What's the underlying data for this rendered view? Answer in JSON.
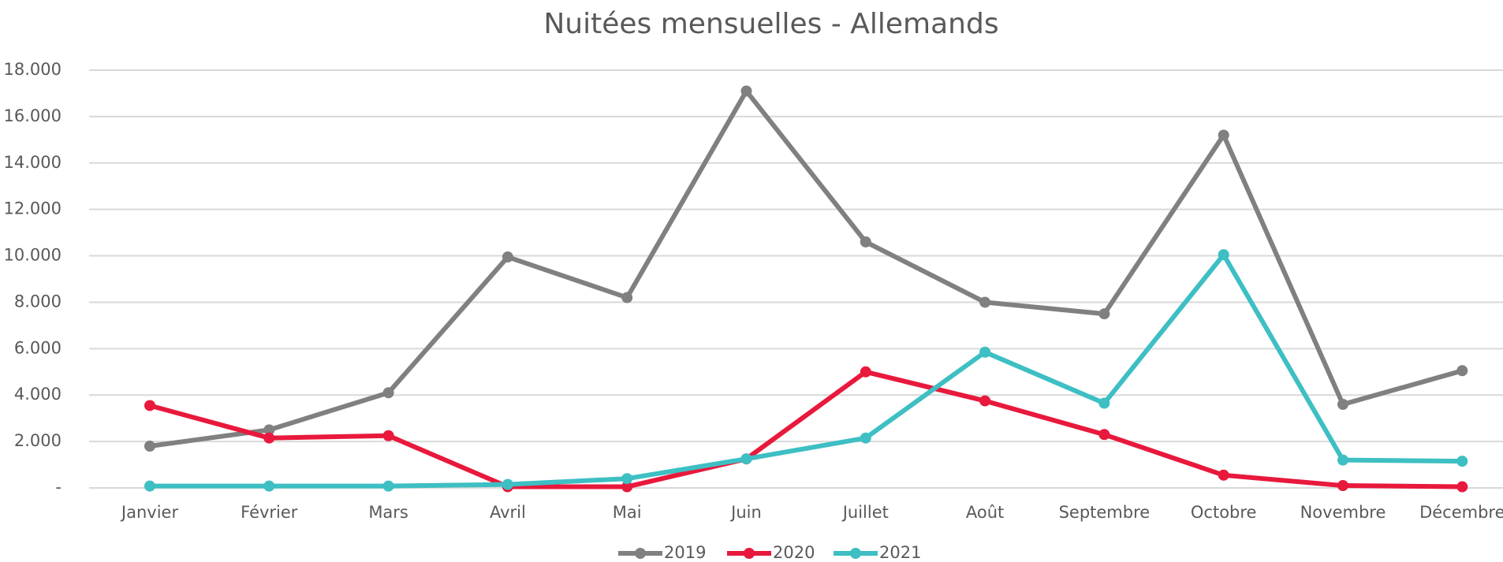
{
  "chart_data": {
    "type": "line",
    "title": "Nuitées mensuelles - Allemands",
    "categories": [
      "Janvier",
      "Février",
      "Mars",
      "Avril",
      "Mai",
      "Juin",
      "Juillet",
      "Août",
      "Septembre",
      "Octobre",
      "Novembre",
      "Décembre"
    ],
    "series": [
      {
        "name": "2019",
        "color": "#808080",
        "values": [
          1800,
          2500,
          4100,
          9950,
          8200,
          17100,
          10600,
          8000,
          7500,
          15200,
          3600,
          5050
        ]
      },
      {
        "name": "2020",
        "color": "#e8193c",
        "values": [
          3550,
          2150,
          2250,
          50,
          50,
          1250,
          5000,
          3750,
          2300,
          550,
          100,
          50
        ]
      },
      {
        "name": "2021",
        "color": "#3dbfc3",
        "values": [
          80,
          80,
          80,
          150,
          400,
          1250,
          2150,
          5850,
          3650,
          10050,
          1200,
          1150
        ]
      }
    ],
    "ylim": [
      0,
      18000
    ],
    "yticks": [
      {
        "value": 0,
        "label": "-"
      },
      {
        "value": 2000,
        "label": "2.000"
      },
      {
        "value": 4000,
        "label": "4.000"
      },
      {
        "value": 6000,
        "label": "6.000"
      },
      {
        "value": 8000,
        "label": "8.000"
      },
      {
        "value": 10000,
        "label": "10.000"
      },
      {
        "value": 12000,
        "label": "12.000"
      },
      {
        "value": 14000,
        "label": "14.000"
      },
      {
        "value": 16000,
        "label": "16.000"
      },
      {
        "value": 18000,
        "label": "18.000"
      }
    ],
    "grid": true,
    "legend": "bottom"
  }
}
